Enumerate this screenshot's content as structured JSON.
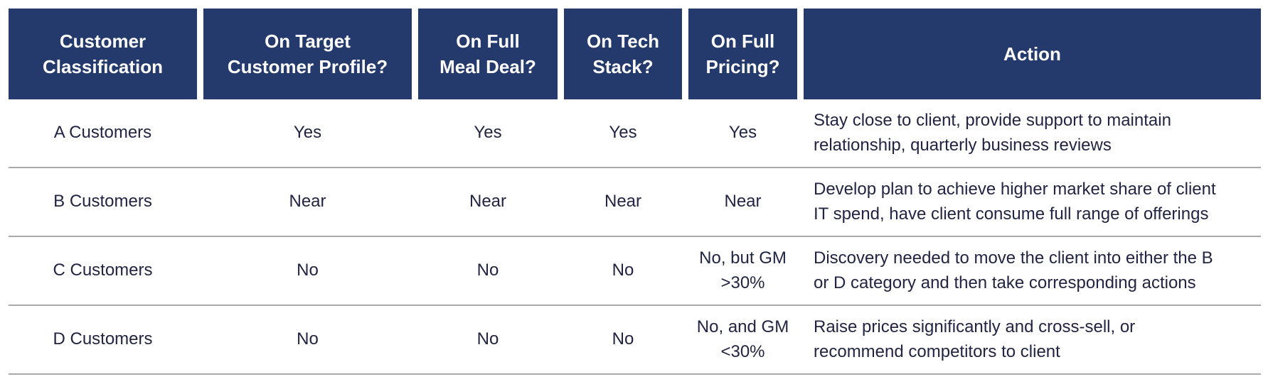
{
  "colors": {
    "header_background": "#253A6C",
    "header_text": "#FFFFFF",
    "body_text": "#212442",
    "row_separator": "#A9A9A9",
    "page_background": "#FFFFFF"
  },
  "table": {
    "headers": [
      "Customer\nClassification",
      "On Target\nCustomer Profile?",
      "On Full\nMeal Deal?",
      "On Tech\nStack?",
      "On Full\nPricing?",
      "Action"
    ],
    "rows": [
      {
        "cells": [
          "A Customers",
          "Yes",
          "Yes",
          "Yes",
          "Yes",
          "Stay close to client, provide support to maintain\nrelationship, quarterly business reviews"
        ]
      },
      {
        "cells": [
          "B Customers",
          "Near",
          "Near",
          "Near",
          "Near",
          "Develop plan to achieve higher market share of client\nIT spend, have client consume full range of offerings"
        ]
      },
      {
        "cells": [
          "C Customers",
          "No",
          "No",
          "No",
          "No, but GM\n>30%",
          "Discovery needed to move the client into either the B\nor D category and then take corresponding actions"
        ]
      },
      {
        "cells": [
          "D Customers",
          "No",
          "No",
          "No",
          "No, and GM\n<30%",
          "Raise prices significantly and cross-sell, or\nrecommend competitors to client"
        ]
      }
    ]
  }
}
